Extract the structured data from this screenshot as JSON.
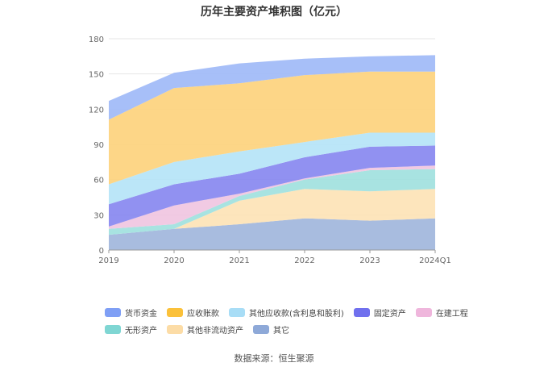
{
  "title": "历年主要资产堆积图（亿元）",
  "source": "数据来源：恒生聚源",
  "chart_data": {
    "type": "area",
    "stacked": true,
    "title": "历年主要资产堆积图（亿元）",
    "x": [
      "2019",
      "2020",
      "2021",
      "2022",
      "2023",
      "2024Q1"
    ],
    "ylim": [
      0,
      180
    ],
    "yticks": [
      0,
      30,
      60,
      90,
      120,
      150,
      180
    ],
    "grid": true,
    "legend_position": "bottom",
    "series": [
      {
        "name": "其它",
        "color": "#9fb5dc",
        "values": [
          13,
          18,
          22,
          27,
          25,
          27
        ]
      },
      {
        "name": "其他非流动资产",
        "color": "#fde2b5",
        "values": [
          0,
          0,
          20,
          25,
          25,
          25
        ]
      },
      {
        "name": "无形资产",
        "color": "#9ee0de",
        "values": [
          5,
          4,
          4,
          8,
          18,
          17
        ]
      },
      {
        "name": "在建工程",
        "color": "#f0c4e0",
        "values": [
          2,
          16,
          2,
          1,
          2,
          3
        ]
      },
      {
        "name": "固定资产",
        "color": "#8585f0",
        "values": [
          19,
          18,
          17,
          18,
          18,
          17
        ]
      },
      {
        "name": "其他应收款(含利息和股利)",
        "color": "#b4e3f7",
        "values": [
          17,
          19,
          19,
          13,
          12,
          11
        ]
      },
      {
        "name": "应收账款",
        "color": "#fdd27a",
        "values": [
          55,
          63,
          58,
          57,
          52,
          52
        ]
      },
      {
        "name": "货币资金",
        "color": "#9db8f7",
        "values": [
          16,
          13,
          17,
          14,
          13,
          14
        ]
      }
    ]
  },
  "legend": {
    "rows": [
      [
        {
          "label": "货币资金",
          "color": "#7f9ff5"
        },
        {
          "label": "应收账款",
          "color": "#fbc13a"
        },
        {
          "label": "其他应收款(含利息和股利)",
          "color": "#a8ddf6"
        },
        {
          "label": "固定资产",
          "color": "#7070ee"
        },
        {
          "label": "在建工程",
          "color": "#efb6dc"
        }
      ],
      [
        {
          "label": "无形资产",
          "color": "#7fd6d3"
        },
        {
          "label": "其他非流动资产",
          "color": "#fcdca6"
        },
        {
          "label": "其它",
          "color": "#8ea9d8"
        }
      ]
    ]
  }
}
